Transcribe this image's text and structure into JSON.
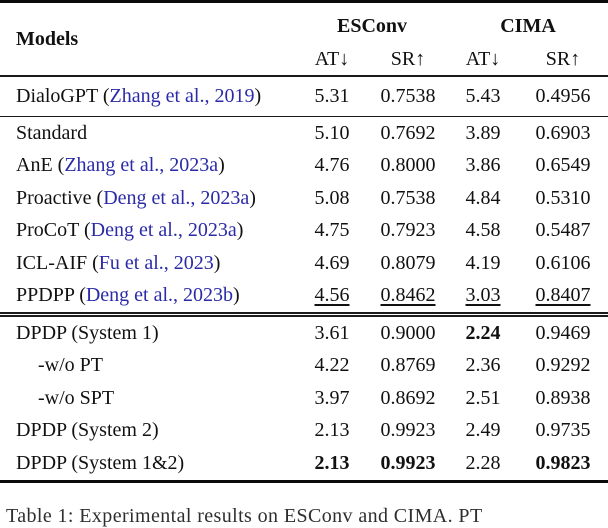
{
  "colors": {
    "citation_blue": "#2b2ba8",
    "text": "#111111",
    "rule": "#0a0a0a"
  },
  "table": {
    "header": {
      "models_label": "Models",
      "groups": [
        {
          "label": "ESConv"
        },
        {
          "label": "CIMA"
        }
      ],
      "sub_headers": [
        "AT↓",
        "SR↑",
        "AT↓",
        "SR↑"
      ]
    },
    "rows": [
      {
        "label": "DialoGPT (",
        "cite": "Zhang et al., 2019",
        "post": ")",
        "values": [
          "5.31",
          "0.7538",
          "5.43",
          "0.4956"
        ],
        "styles": [
          "",
          "",
          "",
          ""
        ]
      },
      {
        "label": "Standard",
        "cite": "",
        "post": "",
        "values": [
          "5.10",
          "0.7692",
          "3.89",
          "0.6903"
        ],
        "styles": [
          "",
          "",
          "",
          ""
        ]
      },
      {
        "label": "AnE (",
        "cite": "Zhang et al., 2023a",
        "post": ")",
        "values": [
          "4.76",
          "0.8000",
          "3.86",
          "0.6549"
        ],
        "styles": [
          "",
          "",
          "",
          ""
        ]
      },
      {
        "label": "Proactive (",
        "cite": "Deng et al., 2023a",
        "post": ")",
        "values": [
          "5.08",
          "0.7538",
          "4.84",
          "0.5310"
        ],
        "styles": [
          "",
          "",
          "",
          ""
        ]
      },
      {
        "label": "ProCoT (",
        "cite": "Deng et al., 2023a",
        "post": ")",
        "values": [
          "4.75",
          "0.7923",
          "4.58",
          "0.5487"
        ],
        "styles": [
          "",
          "",
          "",
          ""
        ]
      },
      {
        "label": "ICL-AIF (",
        "cite": "Fu et al., 2023",
        "post": ")",
        "values": [
          "4.69",
          "0.8079",
          "4.19",
          "0.6106"
        ],
        "styles": [
          "",
          "",
          "",
          ""
        ]
      },
      {
        "label": "PPDPP (",
        "cite": "Deng et al., 2023b",
        "post": ")",
        "values": [
          "4.56",
          "0.8462",
          "3.03",
          "0.8407"
        ],
        "styles": [
          "underline",
          "underline",
          "underline",
          "underline"
        ]
      },
      {
        "label": "DPDP (System 1)",
        "cite": "",
        "post": "",
        "values": [
          "3.61",
          "0.9000",
          "2.24",
          "0.9469"
        ],
        "styles": [
          "",
          "",
          "bold",
          ""
        ]
      },
      {
        "label": "-w/o PT",
        "cite": "",
        "post": "",
        "values": [
          "4.22",
          "0.8769",
          "2.36",
          "0.9292"
        ],
        "styles": [
          "",
          "",
          "",
          ""
        ],
        "indent": true
      },
      {
        "label": "-w/o SPT",
        "cite": "",
        "post": "",
        "values": [
          "3.97",
          "0.8692",
          "2.51",
          "0.8938"
        ],
        "styles": [
          "",
          "",
          "",
          ""
        ],
        "indent": true
      },
      {
        "label": "DPDP (System 2)",
        "cite": "",
        "post": "",
        "values": [
          "2.13",
          "0.9923",
          "2.49",
          "0.9735"
        ],
        "styles": [
          "",
          "",
          "",
          ""
        ]
      },
      {
        "label": "DPDP (System 1&2)",
        "cite": "",
        "post": "",
        "values": [
          "2.13",
          "0.9923",
          "2.28",
          "0.9823"
        ],
        "styles": [
          "bold",
          "bold",
          "",
          "bold"
        ]
      }
    ]
  },
  "caption": "Table 1: Experimental results on ESConv and CIMA. PT"
}
